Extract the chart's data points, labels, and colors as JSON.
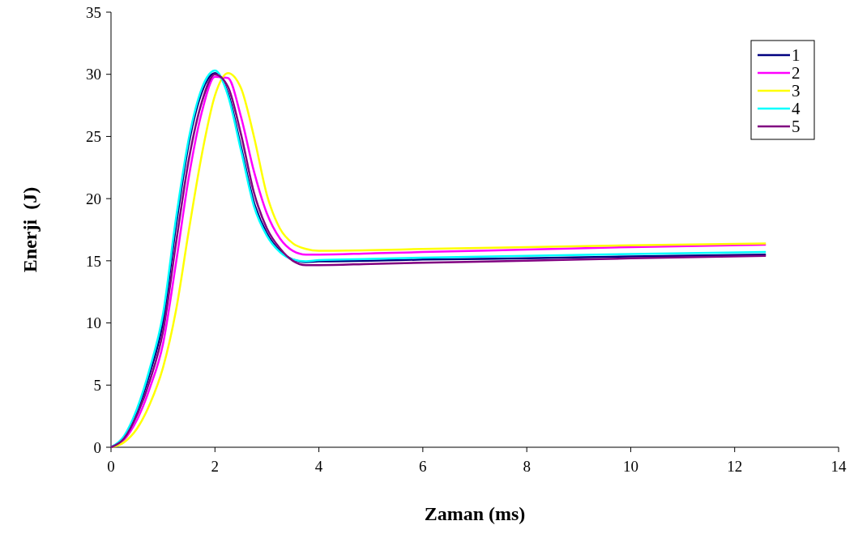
{
  "chart_data": {
    "type": "line",
    "xlabel": "Zaman (ms)",
    "ylabel": "Enerji  (J)",
    "x": [
      0,
      0.25,
      0.5,
      0.75,
      1.0,
      1.25,
      1.5,
      1.75,
      2.0,
      2.25,
      2.5,
      2.75,
      3.0,
      3.25,
      3.5,
      3.75,
      4,
      5,
      6,
      8,
      10,
      12.6
    ],
    "series": [
      {
        "name": "1",
        "color": "#000080",
        "values": [
          0,
          0.8,
          2.9,
          6.0,
          10.1,
          17.8,
          24.5,
          28.6,
          30.1,
          28.5,
          24.2,
          19.7,
          17.2,
          15.8,
          15.1,
          14.9,
          14.95,
          15.0,
          15.1,
          15.2,
          15.35,
          15.5
        ]
      },
      {
        "name": "2",
        "color": "#ff00ff",
        "values": [
          0,
          0.6,
          2.2,
          4.8,
          8.3,
          14.8,
          21.8,
          27.0,
          29.8,
          29.7,
          26.6,
          22.2,
          18.8,
          16.8,
          15.8,
          15.5,
          15.5,
          15.6,
          15.7,
          15.9,
          16.1,
          16.3
        ]
      },
      {
        "name": "3",
        "color": "#ffff00",
        "values": [
          0,
          0.4,
          1.5,
          3.5,
          6.4,
          11.0,
          17.5,
          23.6,
          28.3,
          30.1,
          28.9,
          25.0,
          20.3,
          17.6,
          16.4,
          15.95,
          15.8,
          15.85,
          15.95,
          16.1,
          16.25,
          16.4
        ]
      },
      {
        "name": "4",
        "color": "#00ffff",
        "values": [
          0,
          0.9,
          3.1,
          6.4,
          10.7,
          18.4,
          24.9,
          28.9,
          30.3,
          28.3,
          23.9,
          19.4,
          17.0,
          15.7,
          15.1,
          14.95,
          15.05,
          15.15,
          15.25,
          15.4,
          15.55,
          15.7
        ]
      },
      {
        "name": "5",
        "color": "#800080",
        "values": [
          0,
          0.7,
          2.6,
          5.4,
          9.3,
          16.4,
          23.2,
          27.8,
          30.0,
          29.0,
          25.2,
          20.5,
          17.6,
          16.0,
          15.0,
          14.65,
          14.65,
          14.75,
          14.85,
          15.0,
          15.2,
          15.4
        ]
      }
    ],
    "xlim": [
      0,
      14
    ],
    "xticks": [
      0,
      2,
      4,
      6,
      8,
      10,
      12,
      14
    ],
    "ylim": [
      0,
      35
    ],
    "yticks": [
      0,
      5,
      10,
      15,
      20,
      25,
      30,
      35
    ],
    "legend": "top right",
    "grid": false,
    "marker": "none",
    "line_style": "solid"
  }
}
